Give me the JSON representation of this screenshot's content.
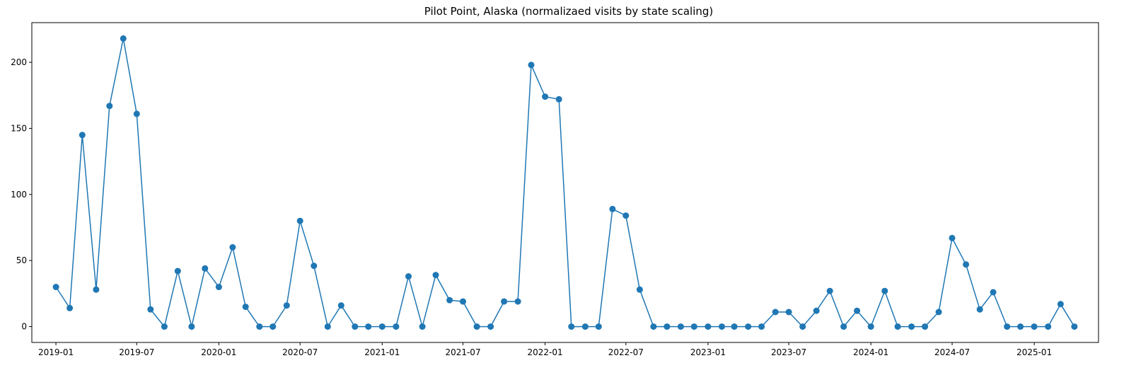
{
  "chart_data": {
    "type": "line",
    "title": "Pilot Point, Alaska (normalizaed visits by state scaling)",
    "xlabel": "",
    "ylabel": "",
    "x_tick_labels": [
      "2019-01",
      "2019-07",
      "2020-01",
      "2020-07",
      "2021-01",
      "2021-07",
      "2022-01",
      "2022-07",
      "2023-01",
      "2023-07",
      "2024-01",
      "2024-07",
      "2025-01"
    ],
    "y_ticks": [
      0,
      50,
      100,
      150,
      200
    ],
    "ylim": [
      -12,
      230
    ],
    "xlim": [
      "2018-11-08",
      "2025-05-25"
    ],
    "grid": false,
    "legend": "none",
    "series": [
      {
        "color": "#1f77b4",
        "marker": "circle",
        "x": [
          "2019-01-01",
          "2019-02-01",
          "2019-03-01",
          "2019-04-01",
          "2019-05-01",
          "2019-06-01",
          "2019-07-01",
          "2019-08-01",
          "2019-09-01",
          "2019-10-01",
          "2019-11-01",
          "2019-12-01",
          "2020-01-01",
          "2020-02-01",
          "2020-03-01",
          "2020-04-01",
          "2020-05-01",
          "2020-06-01",
          "2020-07-01",
          "2020-08-01",
          "2020-09-01",
          "2020-10-01",
          "2020-11-01",
          "2020-12-01",
          "2021-01-01",
          "2021-02-01",
          "2021-03-01",
          "2021-04-01",
          "2021-05-01",
          "2021-06-01",
          "2021-07-01",
          "2021-08-01",
          "2021-09-01",
          "2021-10-01",
          "2021-11-01",
          "2021-12-01",
          "2022-01-01",
          "2022-02-01",
          "2022-03-01",
          "2022-04-01",
          "2022-05-01",
          "2022-06-01",
          "2022-07-01",
          "2022-08-01",
          "2022-09-01",
          "2022-10-01",
          "2022-11-01",
          "2022-12-01",
          "2023-01-01",
          "2023-02-01",
          "2023-03-01",
          "2023-04-01",
          "2023-05-01",
          "2023-06-01",
          "2023-07-01",
          "2023-08-01",
          "2023-09-01",
          "2023-10-01",
          "2023-11-01",
          "2023-12-01",
          "2024-01-01",
          "2024-02-01",
          "2024-03-01",
          "2024-04-01",
          "2024-05-01",
          "2024-06-01",
          "2024-07-01",
          "2024-08-01",
          "2024-09-01",
          "2024-10-01",
          "2024-11-01",
          "2024-12-01",
          "2025-01-01",
          "2025-02-01",
          "2025-03-01",
          "2025-04-01"
        ],
        "y": [
          30,
          14,
          145,
          28,
          167,
          218,
          161,
          13,
          0,
          42,
          0,
          44,
          30,
          60,
          15,
          0,
          0,
          16,
          80,
          46,
          0,
          16,
          0,
          0,
          0,
          0,
          38,
          0,
          39,
          20,
          19,
          0,
          0,
          19,
          19,
          198,
          174,
          172,
          0,
          0,
          0,
          89,
          84,
          28,
          0,
          0,
          0,
          0,
          0,
          0,
          0,
          0,
          0,
          11,
          11,
          0,
          12,
          27,
          0,
          12,
          0,
          27,
          0,
          0,
          0,
          11,
          67,
          47,
          13,
          26,
          0,
          0,
          0,
          0,
          17,
          0
        ]
      }
    ]
  }
}
